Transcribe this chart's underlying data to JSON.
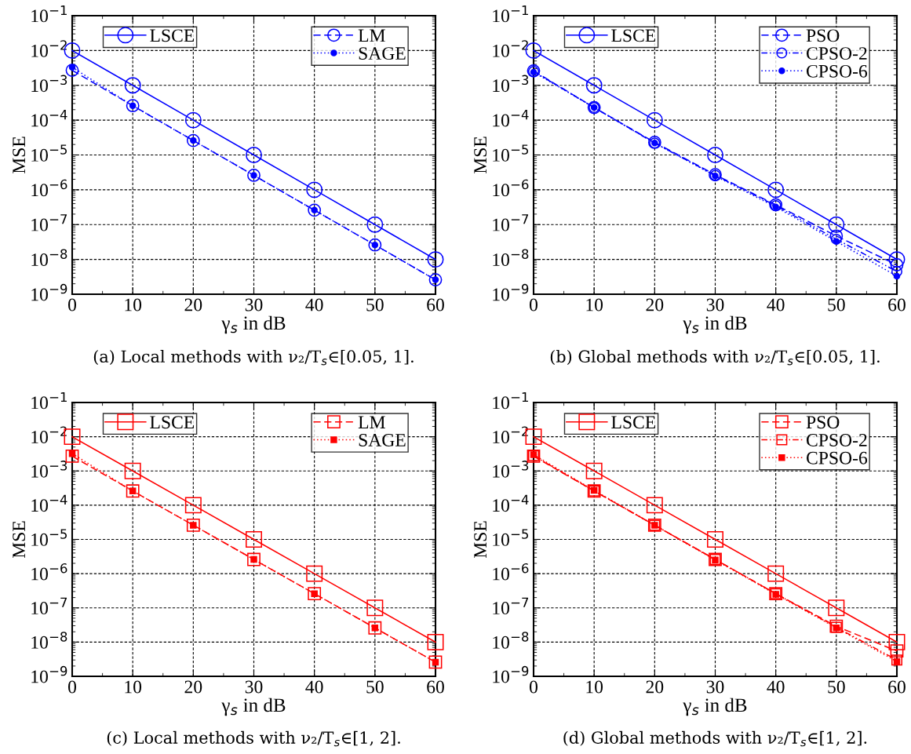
{
  "chart_data": [
    {
      "type": "line",
      "title": "(a) Local methods with ν₂/T$_{s}$∈[0.05, 1].",
      "xlabel": "γ$_{s}$ in dB",
      "ylabel": "MSE",
      "log": "y",
      "grid": true,
      "legend": "top",
      "x": [
        0,
        10,
        20,
        30,
        40,
        50,
        60
      ],
      "xlim": [
        0,
        60
      ],
      "xticks": [
        0,
        10,
        20,
        30,
        40,
        50,
        60
      ],
      "ylim": [
        1e-09,
        0.1
      ],
      "yticks": [
        {
          "value": 1e-09,
          "label": "10$^{−9}$"
        },
        {
          "value": 1e-08,
          "label": "10$^{−8}$"
        },
        {
          "value": 1e-07,
          "label": "10$^{−7}$"
        },
        {
          "value": 1e-06,
          "label": "10$^{−6}$"
        },
        {
          "value": 1e-05,
          "label": "10$^{−5}$"
        },
        {
          "value": 0.0001,
          "label": "10$^{−4}$"
        },
        {
          "value": 0.001,
          "label": "10$^{−3}$"
        },
        {
          "value": 0.01,
          "label": "10$^{−2}$"
        },
        {
          "value": 0.1,
          "label": "10$^{−1}$"
        }
      ],
      "series": [
        {
          "name": "LSCE",
          "color": "#0000ff",
          "marker": "circle",
          "line_style": "solid",
          "values": [
            0.01,
            0.001,
            0.0001,
            1e-05,
            1e-06,
            1e-07,
            1e-08
          ]
        },
        {
          "name": "LM",
          "color": "#0000ff",
          "marker": "circle",
          "line_style": "dashed",
          "values": [
            0.0027,
            0.00026,
            2.6e-05,
            2.6e-06,
            2.6e-07,
            2.6e-08,
            2.6e-09
          ]
        },
        {
          "name": "SAGE",
          "color": "#0000ff",
          "marker": "circle",
          "line_style": "dotted",
          "values": [
            0.0033,
            0.00026,
            2.6e-05,
            2.6e-06,
            2.6e-07,
            2.6e-08,
            2.6e-09
          ]
        }
      ]
    },
    {
      "type": "line",
      "title": "(b) Global methods with ν₂/T$_{s}$∈[0.05, 1].",
      "xlabel": "γ$_{s}$ in dB",
      "ylabel": "MSE",
      "log": "y",
      "grid": true,
      "legend": "top",
      "x": [
        0,
        10,
        20,
        30,
        40,
        50,
        60
      ],
      "xlim": [
        0,
        60
      ],
      "xticks": [
        0,
        10,
        20,
        30,
        40,
        50,
        60
      ],
      "ylim": [
        1e-09,
        0.1
      ],
      "yticks": [
        {
          "value": 1e-09,
          "label": "10$^{−9}$"
        },
        {
          "value": 1e-08,
          "label": "10$^{−8}$"
        },
        {
          "value": 1e-07,
          "label": "10$^{−7}$"
        },
        {
          "value": 1e-06,
          "label": "10$^{−6}$"
        },
        {
          "value": 1e-05,
          "label": "10$^{−5}$"
        },
        {
          "value": 0.0001,
          "label": "10$^{−4}$"
        },
        {
          "value": 0.001,
          "label": "10$^{−3}$"
        },
        {
          "value": 0.01,
          "label": "10$^{−2}$"
        },
        {
          "value": 0.1,
          "label": "10$^{−1}$"
        }
      ],
      "series": [
        {
          "name": "LSCE",
          "color": "#0000ff",
          "marker": "circle",
          "line_style": "solid",
          "values": [
            0.01,
            0.001,
            0.0001,
            1e-05,
            1e-06,
            1e-07,
            1e-08
          ]
        },
        {
          "name": "PSO",
          "color": "#0000ff",
          "marker": "circle",
          "line_style": "dashed",
          "values": [
            0.0026,
            0.00023,
            2.3e-05,
            2.7e-06,
            3.7e-07,
            4.7e-08,
            7e-09
          ]
        },
        {
          "name": "CPSO-2",
          "color": "#0000ff",
          "marker": "circle",
          "line_style": "dashdot",
          "values": [
            0.0025,
            0.00023,
            2.2e-05,
            2.6e-06,
            3.5e-07,
            3.8e-08,
            4.5e-09
          ]
        },
        {
          "name": "CPSO-6",
          "color": "#0000ff",
          "marker": "circle",
          "line_style": "dotted",
          "values": [
            0.0024,
            0.00023,
            2.2e-05,
            2.5e-06,
            3.2e-07,
            3.3e-08,
            3.3e-09
          ]
        }
      ]
    },
    {
      "type": "line",
      "title": "(c) Local methods with ν₂/T$_{s}$∈[1, 2].",
      "xlabel": "γ$_{s}$ in dB",
      "ylabel": "MSE",
      "log": "y",
      "grid": true,
      "legend": "top",
      "x": [
        0,
        10,
        20,
        30,
        40,
        50,
        60
      ],
      "xlim": [
        0,
        60
      ],
      "xticks": [
        0,
        10,
        20,
        30,
        40,
        50,
        60
      ],
      "ylim": [
        1e-09,
        0.1
      ],
      "yticks": [
        {
          "value": 1e-09,
          "label": "10$^{−9}$"
        },
        {
          "value": 1e-08,
          "label": "10$^{−8}$"
        },
        {
          "value": 1e-07,
          "label": "10$^{−7}$"
        },
        {
          "value": 1e-06,
          "label": "10$^{−6}$"
        },
        {
          "value": 1e-05,
          "label": "10$^{−5}$"
        },
        {
          "value": 0.0001,
          "label": "10$^{−4}$"
        },
        {
          "value": 0.001,
          "label": "10$^{−3}$"
        },
        {
          "value": 0.01,
          "label": "10$^{−2}$"
        },
        {
          "value": 0.1,
          "label": "10$^{−1}$"
        }
      ],
      "series": [
        {
          "name": "LSCE",
          "color": "#ff0000",
          "marker": "square",
          "line_style": "solid",
          "values": [
            0.01,
            0.001,
            0.0001,
            1e-05,
            1e-06,
            1e-07,
            1e-08
          ]
        },
        {
          "name": "LM",
          "color": "#ff0000",
          "marker": "square",
          "line_style": "dashed",
          "values": [
            0.0027,
            0.00026,
            2.6e-05,
            2.6e-06,
            2.6e-07,
            2.6e-08,
            2.6e-09
          ]
        },
        {
          "name": "SAGE",
          "color": "#ff0000",
          "marker": "square",
          "line_style": "dotted",
          "values": [
            0.0032,
            0.00026,
            2.6e-05,
            2.6e-06,
            2.6e-07,
            2.6e-08,
            2.6e-09
          ]
        }
      ]
    },
    {
      "type": "line",
      "title": "(d) Global methods with ν₂/T$_{s}$∈[1, 2].",
      "xlabel": "γ$_{s}$ in dB",
      "ylabel": "MSE",
      "log": "y",
      "grid": true,
      "legend": "top",
      "x": [
        0,
        10,
        20,
        30,
        40,
        50,
        60
      ],
      "xlim": [
        0,
        60
      ],
      "xticks": [
        0,
        10,
        20,
        30,
        40,
        50,
        60
      ],
      "ylim": [
        1e-09,
        0.1
      ],
      "yticks": [
        {
          "value": 1e-09,
          "label": "10$^{−9}$"
        },
        {
          "value": 1e-08,
          "label": "10$^{−8}$"
        },
        {
          "value": 1e-07,
          "label": "10$^{−7}$"
        },
        {
          "value": 1e-06,
          "label": "10$^{−6}$"
        },
        {
          "value": 1e-05,
          "label": "10$^{−5}$"
        },
        {
          "value": 0.0001,
          "label": "10$^{−4}$"
        },
        {
          "value": 0.001,
          "label": "10$^{−3}$"
        },
        {
          "value": 0.01,
          "label": "10$^{−2}$"
        },
        {
          "value": 0.1,
          "label": "10$^{−1}$"
        }
      ],
      "series": [
        {
          "name": "LSCE",
          "color": "#ff0000",
          "marker": "square",
          "line_style": "solid",
          "values": [
            0.01,
            0.001,
            0.0001,
            1e-05,
            1e-06,
            1e-07,
            1e-08
          ]
        },
        {
          "name": "PSO",
          "color": "#ff0000",
          "marker": "square",
          "line_style": "dashed",
          "values": [
            0.0027,
            0.00026,
            2.6e-05,
            2.6e-06,
            2.6e-07,
            2.9e-08,
            5.5e-09
          ]
        },
        {
          "name": "CPSO-2",
          "color": "#ff0000",
          "marker": "square",
          "line_style": "dashdot",
          "values": [
            0.0028,
            0.00026,
            2.6e-05,
            2.6e-06,
            2.6e-07,
            2.7e-08,
            3e-09
          ]
        },
        {
          "name": "CPSO-6",
          "color": "#ff0000",
          "marker": "square",
          "line_style": "dotted",
          "values": [
            0.003,
            0.00027,
            2.6e-05,
            2.5e-06,
            2.5e-07,
            2.6e-08,
            2.7e-09
          ]
        }
      ]
    }
  ]
}
